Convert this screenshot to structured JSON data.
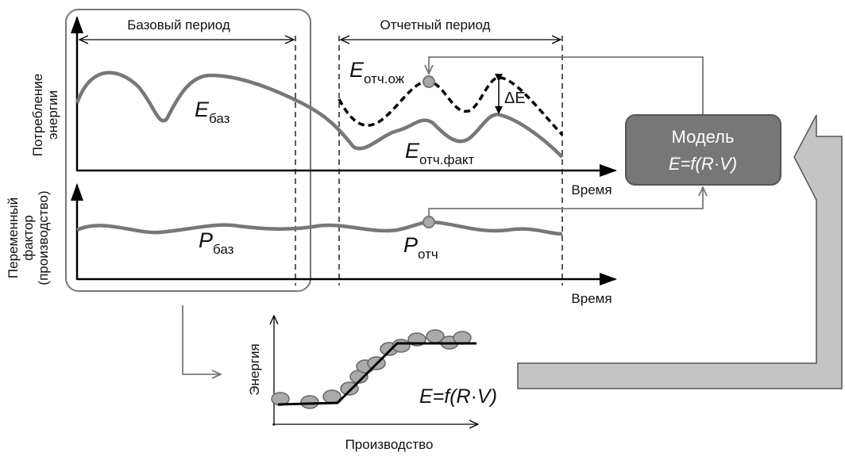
{
  "periods": {
    "base": "Базовый период",
    "report": "Отчетный период"
  },
  "axes": {
    "energy_y": [
      "Потребление",
      "энергии"
    ],
    "factor_y": [
      "Переменный",
      "фактор",
      "(производство)"
    ],
    "time_top": "Время",
    "time_bottom": "Время"
  },
  "labels": {
    "e_base": {
      "main": "E",
      "sub": "баз"
    },
    "e_expected": {
      "main": "E",
      "sub": "отч.ож"
    },
    "e_actual": {
      "main": "E",
      "sub": "отч.факт"
    },
    "delta": "ΔE",
    "p_base": {
      "main": "P",
      "sub": "баз"
    },
    "p_report": {
      "main": "P",
      "sub": "отч"
    }
  },
  "model": {
    "title": "Модель",
    "formula": "E=f(R·V)"
  },
  "regression": {
    "y_label": "Энергия",
    "x_label": "Производство",
    "formula": "E=f(R·V)"
  }
}
